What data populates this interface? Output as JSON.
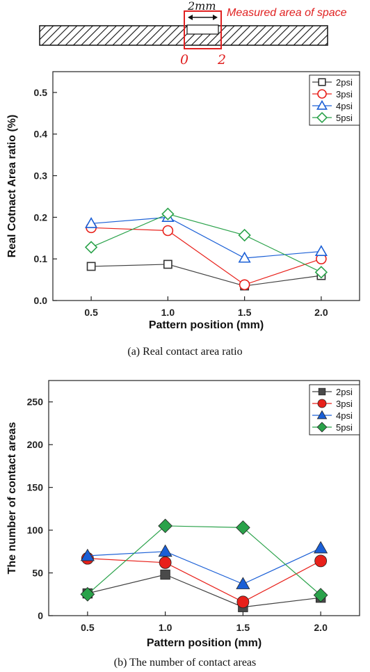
{
  "diagram": {
    "width_label": "2mm",
    "area_label": "Measured area of space",
    "start_label": "0",
    "end_label": "2"
  },
  "chart_data": [
    {
      "type": "line",
      "caption": "(a)  Real contact area ratio",
      "xlabel": "Pattern position (mm)",
      "ylabel": "Real Cotnact Area ratio (%)",
      "x": [
        0.5,
        1.0,
        1.5,
        2.0
      ],
      "xticks": [
        "0.5",
        "1.0",
        "1.5",
        "2.0"
      ],
      "xlim": [
        0.25,
        2.25
      ],
      "ylim": [
        0,
        0.55
      ],
      "yticks": [
        "0.0",
        "0.1",
        "0.2",
        "0.3",
        "0.4",
        "0.5"
      ],
      "ytick_values": [
        0,
        0.1,
        0.2,
        0.3,
        0.4,
        0.5
      ],
      "marker_fill": "hollow",
      "legend_position": "top-right",
      "series": [
        {
          "name": "2psi",
          "marker": "square",
          "color": "#404040",
          "values": [
            0.082,
            0.087,
            0.035,
            0.06
          ]
        },
        {
          "name": "3psi",
          "marker": "circle",
          "color": "#e8201a",
          "values": [
            0.175,
            0.168,
            0.038,
            0.1
          ]
        },
        {
          "name": "4psi",
          "marker": "triangle",
          "color": "#1a5fd6",
          "values": [
            0.185,
            0.2,
            0.102,
            0.118
          ]
        },
        {
          "name": "5psi",
          "marker": "diamond",
          "color": "#2aa24a",
          "values": [
            0.128,
            0.208,
            0.157,
            0.068
          ]
        }
      ]
    },
    {
      "type": "line",
      "caption": "(b)  The number of contact areas",
      "xlabel": "Pattern position (mm)",
      "ylabel": "The number of contact areas",
      "x": [
        0.5,
        1.0,
        1.5,
        2.0
      ],
      "xticks": [
        "0.5",
        "1.0",
        "1.5",
        "2.0"
      ],
      "xlim": [
        0.25,
        2.25
      ],
      "ylim": [
        0,
        275
      ],
      "yticks": [
        "0",
        "50",
        "100",
        "150",
        "200",
        "250"
      ],
      "ytick_values": [
        0,
        50,
        100,
        150,
        200,
        250
      ],
      "marker_fill": "solid",
      "legend_position": "top-right",
      "series": [
        {
          "name": "2psi",
          "marker": "square",
          "color": "#404040",
          "values": [
            26,
            48,
            10,
            21
          ]
        },
        {
          "name": "3psi",
          "marker": "circle",
          "color": "#e8201a",
          "values": [
            67,
            62,
            16,
            64
          ]
        },
        {
          "name": "4psi",
          "marker": "triangle",
          "color": "#1a5fd6",
          "values": [
            70,
            75,
            37,
            79
          ]
        },
        {
          "name": "5psi",
          "marker": "diamond",
          "color": "#2aa24a",
          "values": [
            25,
            105,
            103,
            24
          ]
        }
      ]
    }
  ]
}
